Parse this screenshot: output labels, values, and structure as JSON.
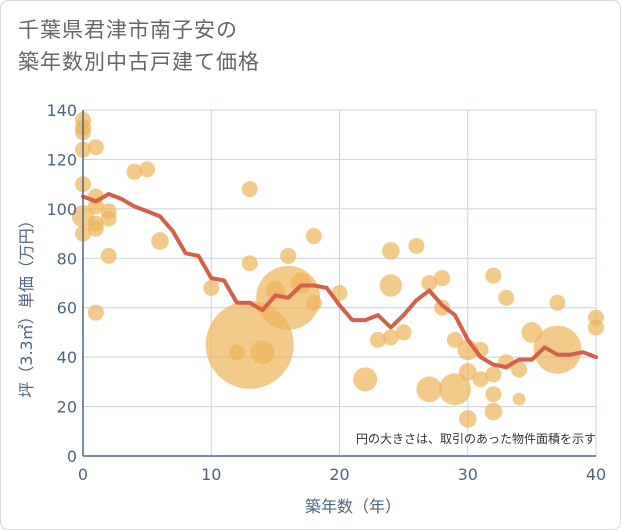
{
  "title_line1": "千葉県君津市南子安の",
  "title_line2": "築年数別中古戸建て価格",
  "chart_data": {
    "type": "scatter",
    "xlabel": "築年数（年）",
    "ylabel": "坪（3.3㎡）単価（万円）",
    "xlim": [
      0,
      40
    ],
    "ylim": [
      0,
      140
    ],
    "xticks": [
      0,
      10,
      20,
      30,
      40
    ],
    "yticks": [
      0,
      20,
      40,
      60,
      80,
      100,
      120,
      140
    ],
    "grid": true,
    "note": "円の大きさは、取引のあった物件面積を示す",
    "colors": {
      "bubble": "#f0b35a",
      "line": "#d4604a",
      "grid": "#c8d2e2",
      "axis": "#4d6680"
    },
    "bubbles": [
      {
        "x": 0,
        "y": 136,
        "s": 1
      },
      {
        "x": 0,
        "y": 133,
        "s": 1
      },
      {
        "x": 0,
        "y": 131,
        "s": 1
      },
      {
        "x": 0,
        "y": 124,
        "s": 1
      },
      {
        "x": 0,
        "y": 110,
        "s": 1
      },
      {
        "x": 0,
        "y": 97,
        "s": 1.4
      },
      {
        "x": 0,
        "y": 90,
        "s": 1
      },
      {
        "x": 1,
        "y": 125,
        "s": 1
      },
      {
        "x": 1,
        "y": 105,
        "s": 1
      },
      {
        "x": 1,
        "y": 101,
        "s": 1
      },
      {
        "x": 1,
        "y": 94,
        "s": 1
      },
      {
        "x": 1,
        "y": 92,
        "s": 1
      },
      {
        "x": 1,
        "y": 58,
        "s": 1
      },
      {
        "x": 2,
        "y": 99,
        "s": 1
      },
      {
        "x": 2,
        "y": 96,
        "s": 1
      },
      {
        "x": 2,
        "y": 81,
        "s": 1
      },
      {
        "x": 4,
        "y": 115,
        "s": 1
      },
      {
        "x": 5,
        "y": 116,
        "s": 1
      },
      {
        "x": 6,
        "y": 87,
        "s": 1.1
      },
      {
        "x": 10,
        "y": 68,
        "s": 1
      },
      {
        "x": 12,
        "y": 42,
        "s": 1
      },
      {
        "x": 13,
        "y": 108,
        "s": 1
      },
      {
        "x": 13,
        "y": 78,
        "s": 1
      },
      {
        "x": 13,
        "y": 45,
        "s": 5.5
      },
      {
        "x": 14,
        "y": 42,
        "s": 1.5
      },
      {
        "x": 15,
        "y": 67,
        "s": 1.2
      },
      {
        "x": 16,
        "y": 81,
        "s": 1
      },
      {
        "x": 16,
        "y": 64,
        "s": 4
      },
      {
        "x": 17,
        "y": 70,
        "s": 1.3
      },
      {
        "x": 18,
        "y": 89,
        "s": 1
      },
      {
        "x": 18,
        "y": 62,
        "s": 1
      },
      {
        "x": 20,
        "y": 66,
        "s": 1
      },
      {
        "x": 22,
        "y": 31,
        "s": 1.5
      },
      {
        "x": 23,
        "y": 47,
        "s": 1
      },
      {
        "x": 24,
        "y": 83,
        "s": 1.1
      },
      {
        "x": 24,
        "y": 69,
        "s": 1.4
      },
      {
        "x": 24,
        "y": 48,
        "s": 1
      },
      {
        "x": 25,
        "y": 50,
        "s": 1
      },
      {
        "x": 26,
        "y": 85,
        "s": 1
      },
      {
        "x": 27,
        "y": 70,
        "s": 1
      },
      {
        "x": 27,
        "y": 27,
        "s": 1.6
      },
      {
        "x": 28,
        "y": 72,
        "s": 1
      },
      {
        "x": 28,
        "y": 60,
        "s": 1
      },
      {
        "x": 29,
        "y": 47,
        "s": 1
      },
      {
        "x": 29,
        "y": 27,
        "s": 2
      },
      {
        "x": 30,
        "y": 43,
        "s": 1.3
      },
      {
        "x": 30,
        "y": 34,
        "s": 1.1
      },
      {
        "x": 30,
        "y": 15,
        "s": 1.1
      },
      {
        "x": 31,
        "y": 43,
        "s": 1
      },
      {
        "x": 31,
        "y": 31,
        "s": 1
      },
      {
        "x": 32,
        "y": 73,
        "s": 1
      },
      {
        "x": 32,
        "y": 33,
        "s": 1
      },
      {
        "x": 32,
        "y": 25,
        "s": 1
      },
      {
        "x": 32,
        "y": 18,
        "s": 1.1
      },
      {
        "x": 33,
        "y": 64,
        "s": 1
      },
      {
        "x": 33,
        "y": 38,
        "s": 1
      },
      {
        "x": 34,
        "y": 35,
        "s": 1
      },
      {
        "x": 34,
        "y": 23,
        "s": 0.8
      },
      {
        "x": 35,
        "y": 50,
        "s": 1.3
      },
      {
        "x": 37,
        "y": 62,
        "s": 1
      },
      {
        "x": 37,
        "y": 43,
        "s": 3
      },
      {
        "x": 40,
        "y": 56,
        "s": 1
      },
      {
        "x": 40,
        "y": 52,
        "s": 1
      }
    ],
    "trend": {
      "x": [
        0,
        1,
        2,
        3,
        4,
        5,
        6,
        7,
        8,
        9,
        10,
        11,
        12,
        13,
        14,
        15,
        16,
        17,
        18,
        19,
        20,
        21,
        22,
        23,
        24,
        25,
        26,
        27,
        28,
        29,
        30,
        31,
        32,
        33,
        34,
        35,
        36,
        37,
        38,
        39,
        40
      ],
      "y": [
        105,
        103,
        106,
        104,
        101,
        99,
        97,
        91,
        82,
        81,
        72,
        71,
        62,
        62,
        59,
        65,
        64,
        69,
        69,
        68,
        61,
        55,
        55,
        57,
        52,
        57,
        63,
        67,
        61,
        57,
        47,
        40,
        37,
        36,
        39,
        39,
        44,
        41,
        41,
        42,
        40
      ]
    }
  }
}
